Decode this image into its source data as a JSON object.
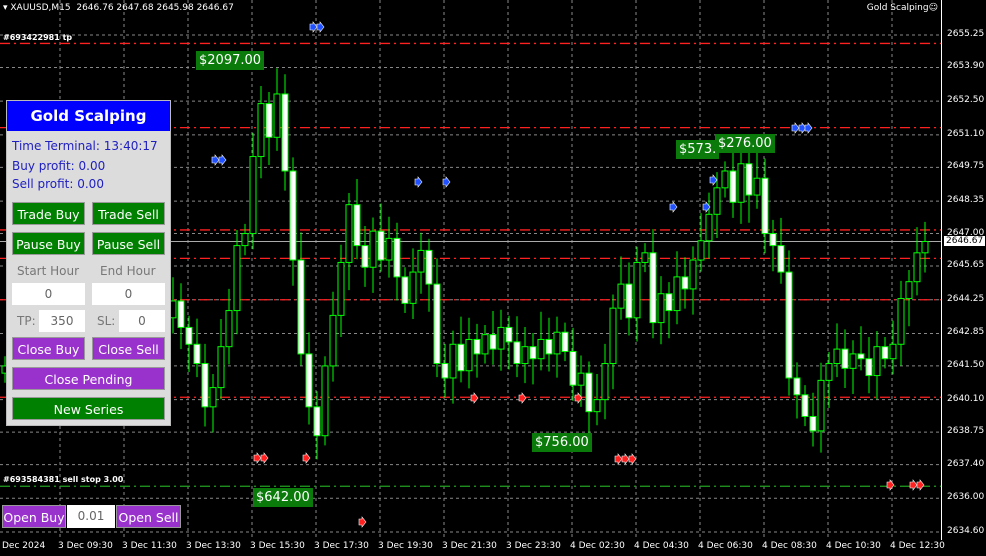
{
  "header": {
    "symbol": "XAUUSD,M15",
    "ohlc": "2646.76 2647.68 2645.98 2646.67"
  },
  "ea_name": "Gold Scalping",
  "ea_icon": "smiley-icon",
  "order_labels": {
    "tp": "#693422981 tp",
    "sell_stop": "#693584381 sell stop 3.00"
  },
  "profit_tags": [
    "$2097.00",
    "$642.00",
    "$756.00",
    "$573.",
    "$276.00"
  ],
  "panel": {
    "title": "Gold Scalping",
    "time_terminal": "Time Terminal: 13:40:17",
    "buy_profit": "Buy profit: 0.00",
    "sell_profit": "Sell profit: 0.00",
    "trade_buy": "Trade Buy",
    "trade_sell": "Trade Sell",
    "pause_buy": "Pause Buy",
    "pause_sell": "Pause Sell",
    "start_hour_label": "Start Hour",
    "end_hour_label": "End Hour",
    "start_hour": "0",
    "end_hour": "0",
    "tp_label": "TP:",
    "tp": "350",
    "sl_label": "SL:",
    "sl": "0",
    "close_buy": "Close Buy",
    "close_sell": "Close Sell",
    "close_pending": "Close Pending",
    "new_series": "New Series"
  },
  "bottom": {
    "open_buy": "Open Buy",
    "lot": "0.01",
    "open_sell": "Open Sell"
  },
  "colors": {
    "bull": "#00ff00",
    "level": "#ff2020",
    "pending": "#20a020",
    "buttons_green": "#008000",
    "buttons_purple": "#9932cc",
    "title_blue": "#0000ff"
  },
  "chart_data": {
    "type": "candlestick",
    "timeframe": "M15",
    "price_ticks": [
      "2655.25",
      "2653.90",
      "2652.50",
      "2651.10",
      "2649.75",
      "2648.35",
      "2647.00",
      "2645.65",
      "2644.25",
      "2642.85",
      "2641.50",
      "2640.10",
      "2638.75",
      "2637.40",
      "2636.00",
      "2634.60"
    ],
    "ylim": [
      2634.6,
      2655.25
    ],
    "current_price": "2646.67",
    "time_ticks": [
      "Dec 2024",
      "3 Dec 09:30",
      "3 Dec 11:30",
      "3 Dec 13:30",
      "3 Dec 15:30",
      "3 Dec 17:30",
      "3 Dec 19:30",
      "3 Dec 21:30",
      "3 Dec 23:30",
      "4 Dec 02:30",
      "4 Dec 04:30",
      "4 Dec 06:30",
      "4 Dec 08:30",
      "4 Dec 10:30",
      "4 Dec 12:30"
    ],
    "grid": true,
    "red_levels": [
      2654.9,
      2651.4,
      2647.15,
      2645.97,
      2644.25,
      2640.2
    ],
    "green_levels": [
      2636.5
    ],
    "closes": [
      2641.5,
      2642,
      2641.2,
      2642.5,
      2643,
      2642.2,
      2641.8,
      2642.6,
      2643.1,
      2642.4,
      2641.9,
      2642.7,
      2643.3,
      2642.8,
      2642.1,
      2642.9,
      2643.4,
      2642.6,
      2642.2,
      2643.0,
      2643.5,
      2644.2,
      2643.1,
      2642.4,
      2641.6,
      2639.8,
      2640.6,
      2642.3,
      2643.8,
      2646.5,
      2647.0,
      2650.2,
      2652.4,
      2651.0,
      2652.8,
      2649.6,
      2645.9,
      2642.0,
      2639.8,
      2638.6,
      2641.5,
      2643.6,
      2645.8,
      2648.2,
      2646.5,
      2645.6,
      2647.1,
      2645.9,
      2646.8,
      2645.2,
      2644.1,
      2645.4,
      2646.3,
      2644.9,
      2641.6,
      2641.0,
      2642.4,
      2641.3,
      2642.6,
      2642.0,
      2642.8,
      2642.2,
      2643.1,
      2642.5,
      2641.6,
      2642.3,
      2641.8,
      2642.6,
      2642.0,
      2642.9,
      2642.1,
      2640.7,
      2641.2,
      2639.6,
      2640.1,
      2641.6,
      2643.9,
      2644.9,
      2643.5,
      2645.8,
      2646.2,
      2643.3,
      2644.5,
      2643.8,
      2645.2,
      2644.7,
      2645.9,
      2646.7,
      2647.8,
      2648.9,
      2649.6,
      2648.3,
      2649.9,
      2648.6,
      2649.3,
      2647.0,
      2646.5,
      2645.4,
      2641.0,
      2640.3,
      2639.4,
      2638.8,
      2640.9,
      2641.6,
      2642.2,
      2641.4,
      2642.0,
      2641.8,
      2641.1,
      2642.3,
      2641.8,
      2642.4,
      2644.3,
      2645.0,
      2646.2,
      2646.67
    ]
  }
}
